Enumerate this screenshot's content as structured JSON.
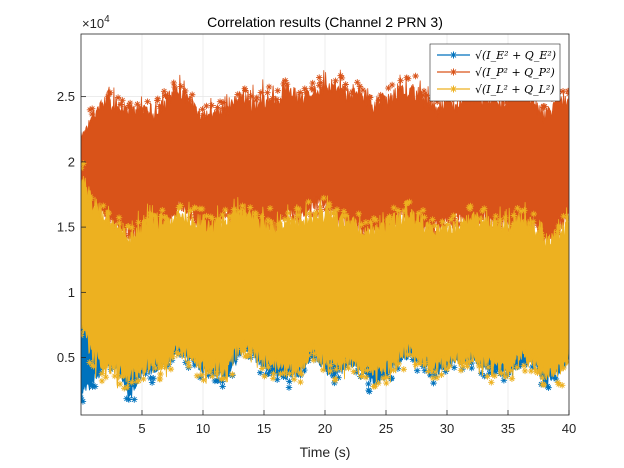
{
  "chart_data": {
    "type": "line",
    "title": "Correlation results (Channel 2 PRN 3)",
    "xlabel": "Time (s)",
    "ylabel": "",
    "xlim": [
      0,
      40
    ],
    "ylim": [
      600,
      29800
    ],
    "x_ticks": [
      5,
      10,
      15,
      20,
      25,
      30,
      35,
      40
    ],
    "y_ticks": [
      5000,
      10000,
      15000,
      20000,
      25000
    ],
    "y_tick_labels": [
      "0.5",
      "1",
      "1.5",
      "2",
      "2.5"
    ],
    "y_exponent": "×10",
    "y_exponent_power": "4",
    "grid": true,
    "legend_position": "top-right",
    "marker": "asterisk",
    "series": [
      {
        "name": "√(I_E² + Q_E²)",
        "color": "#0072BD",
        "x": [
          0,
          1,
          2,
          3,
          4,
          5,
          6,
          7,
          8,
          9,
          10,
          11,
          12,
          13,
          14,
          15,
          16,
          17,
          18,
          19,
          20,
          21,
          22,
          23,
          24,
          25,
          26,
          27,
          28,
          29,
          30,
          31,
          32,
          33,
          34,
          35,
          36,
          37,
          38,
          39,
          40
        ],
        "min": [
          1500,
          3000,
          4200,
          4000,
          1500,
          3800,
          3500,
          4500,
          5200,
          4600,
          3800,
          3400,
          3200,
          5200,
          5300,
          4000,
          3600,
          3100,
          3600,
          5000,
          3800,
          3500,
          4400,
          3800,
          2800,
          3300,
          4500,
          4900,
          4400,
          3300,
          4200,
          4400,
          4600,
          4000,
          3700,
          3500,
          4200,
          4500,
          2800,
          3400,
          4800
        ],
        "max": [
          10500,
          9500,
          9300,
          8500,
          8500,
          9000,
          9300,
          9300,
          9500,
          9700,
          9500,
          9600,
          9300,
          9500,
          9500,
          9200,
          9000,
          9000,
          9300,
          9700,
          9500,
          9300,
          9500,
          9400,
          9300,
          9200,
          9000,
          9100,
          9300,
          9200,
          9000,
          9200,
          9300,
          9500,
          9300,
          9200,
          9000,
          9300,
          9200,
          9100,
          9000
        ]
      },
      {
        "name": "√(I_P² + Q_P²)",
        "color": "#D95319",
        "x": [
          0,
          1,
          2,
          3,
          4,
          5,
          6,
          7,
          8,
          9,
          10,
          11,
          12,
          13,
          14,
          15,
          16,
          17,
          18,
          19,
          20,
          21,
          22,
          23,
          24,
          25,
          26,
          27,
          28,
          29,
          30,
          31,
          32,
          33,
          34,
          35,
          36,
          37,
          38,
          39,
          40
        ],
        "min": [
          16500,
          16000,
          15500,
          14500,
          14000,
          14200,
          13200,
          14500,
          16200,
          15800,
          14500,
          14000,
          15500,
          15200,
          14000,
          13500,
          14500,
          15800,
          15200,
          16200,
          16500,
          15000,
          14500,
          14600,
          14000,
          14200,
          15200,
          15300,
          14000,
          14200,
          15300,
          15300,
          14500,
          15200,
          15000,
          14500,
          14500,
          15000,
          13200,
          13800,
          16000
        ],
        "max": [
          22000,
          24000,
          25200,
          24800,
          24500,
          24500,
          24500,
          25300,
          26000,
          25200,
          24000,
          24300,
          24500,
          25500,
          25000,
          25500,
          25200,
          26200,
          25300,
          25800,
          26300,
          26500,
          25500,
          25800,
          25000,
          25300,
          25900,
          26300,
          25500,
          24500,
          25000,
          24800,
          25800,
          25300,
          25400,
          25000,
          26000,
          25200,
          24000,
          25000,
          25300
        ]
      },
      {
        "name": "√(I_L² + Q_L²)",
        "color": "#EDB120",
        "x": [
          0,
          1,
          2,
          3,
          4,
          5,
          6,
          7,
          8,
          9,
          10,
          11,
          12,
          13,
          14,
          15,
          16,
          17,
          18,
          19,
          20,
          21,
          22,
          23,
          24,
          25,
          26,
          27,
          28,
          29,
          30,
          31,
          32,
          33,
          34,
          35,
          36,
          37,
          38,
          39,
          40
        ],
        "min": [
          7000,
          4300,
          3600,
          3300,
          2800,
          3500,
          3800,
          4000,
          5000,
          4500,
          3600,
          3500,
          3500,
          5200,
          5200,
          4000,
          3700,
          3400,
          3500,
          5000,
          4000,
          3700,
          4300,
          3700,
          3100,
          3300,
          4300,
          4900,
          4200,
          3500,
          4100,
          4300,
          4500,
          4000,
          3500,
          3700,
          4300,
          4200,
          3000,
          3200,
          4500
        ],
        "max": [
          19500,
          17500,
          16500,
          15500,
          15000,
          15600,
          16200,
          16000,
          16500,
          16200,
          16000,
          15800,
          16100,
          16600,
          16300,
          16000,
          15500,
          15800,
          16000,
          16500,
          16800,
          16300,
          15800,
          15600,
          15300,
          15800,
          16300,
          16500,
          16000,
          15200,
          15600,
          15700,
          16300,
          16000,
          15800,
          15500,
          16200,
          15700,
          14500,
          15000,
          15800
        ]
      }
    ]
  }
}
